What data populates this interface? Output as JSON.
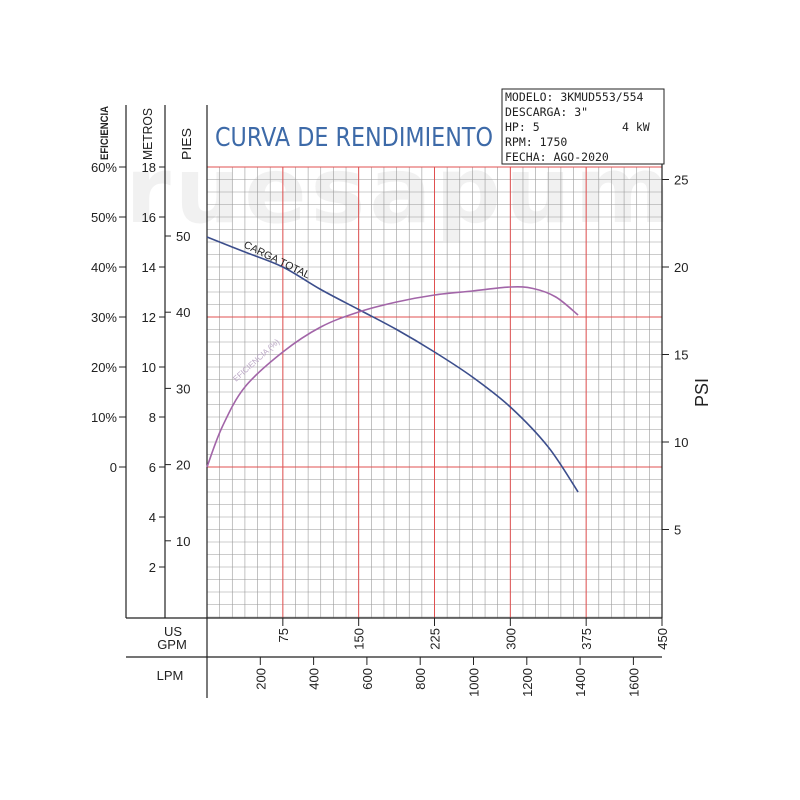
{
  "watermark": "ruesapum",
  "title": "CURVA DE RENDIMIENTO",
  "info_lines": [
    "MODELO: 3KMUD553/554",
    "DESCARGA: 3\"",
    "HP: 5",
    "RPM: 1750",
    "FECHA: AGO-2020"
  ],
  "info_kw": "4 kW",
  "axis_headers": {
    "eficiencia": "EFICIENCIA",
    "metros": "METROS",
    "pies": "PIES",
    "psi": "PSI",
    "us_gpm_1": "US",
    "us_gpm_2": "GPM",
    "lpm": "LPM"
  },
  "colors": {
    "grid_fine": "#9a9a9a",
    "grid_major": "#e05050",
    "carga": "#3c4e8c",
    "eficiencia": "#a265a8",
    "title": "#3d6aa8",
    "axes": "#222222"
  },
  "chart_data": {
    "type": "line",
    "x_unit": "US GPM",
    "xlim": [
      0,
      450
    ],
    "x_ticks": [
      "75",
      "150",
      "225",
      "300",
      "375",
      "450"
    ],
    "lpm_ticks": [
      "200",
      "400",
      "600",
      "800",
      "1000",
      "1200",
      "1400",
      "1600"
    ],
    "y_metros_lim": [
      0,
      18
    ],
    "y_metros_ticks": [
      "2",
      "4",
      "6",
      "8",
      "10",
      "12",
      "14",
      "16",
      "18"
    ],
    "y_eficiencia_ticks": [
      "0",
      "10%",
      "20%",
      "30%",
      "40%",
      "50%",
      "60%"
    ],
    "y_pies_ticks": [
      "10",
      "20",
      "30",
      "40",
      "50"
    ],
    "y_psi_ticks": [
      "5",
      "10",
      "15",
      "20",
      "25"
    ],
    "grid": true,
    "series": [
      {
        "name": "CARGA TOTAL",
        "axis": "metros",
        "x": [
          0,
          37.5,
          75,
          112.5,
          150,
          187.5,
          225,
          262.5,
          300,
          337.5,
          367
        ],
        "y": [
          15.2,
          14.6,
          14.0,
          13.1,
          12.3,
          11.5,
          10.6,
          9.6,
          8.4,
          6.8,
          5.0
        ]
      },
      {
        "name": "EFICIENCIA (%)",
        "axis": "eficiencia",
        "x": [
          0,
          15,
          37.5,
          75,
          112.5,
          150,
          187.5,
          225,
          262.5,
          300,
          322.5,
          345,
          367
        ],
        "y": [
          0,
          8,
          16,
          23,
          28,
          31,
          33,
          34.4,
          35.2,
          36,
          35.7,
          34,
          30.4
        ]
      }
    ]
  }
}
